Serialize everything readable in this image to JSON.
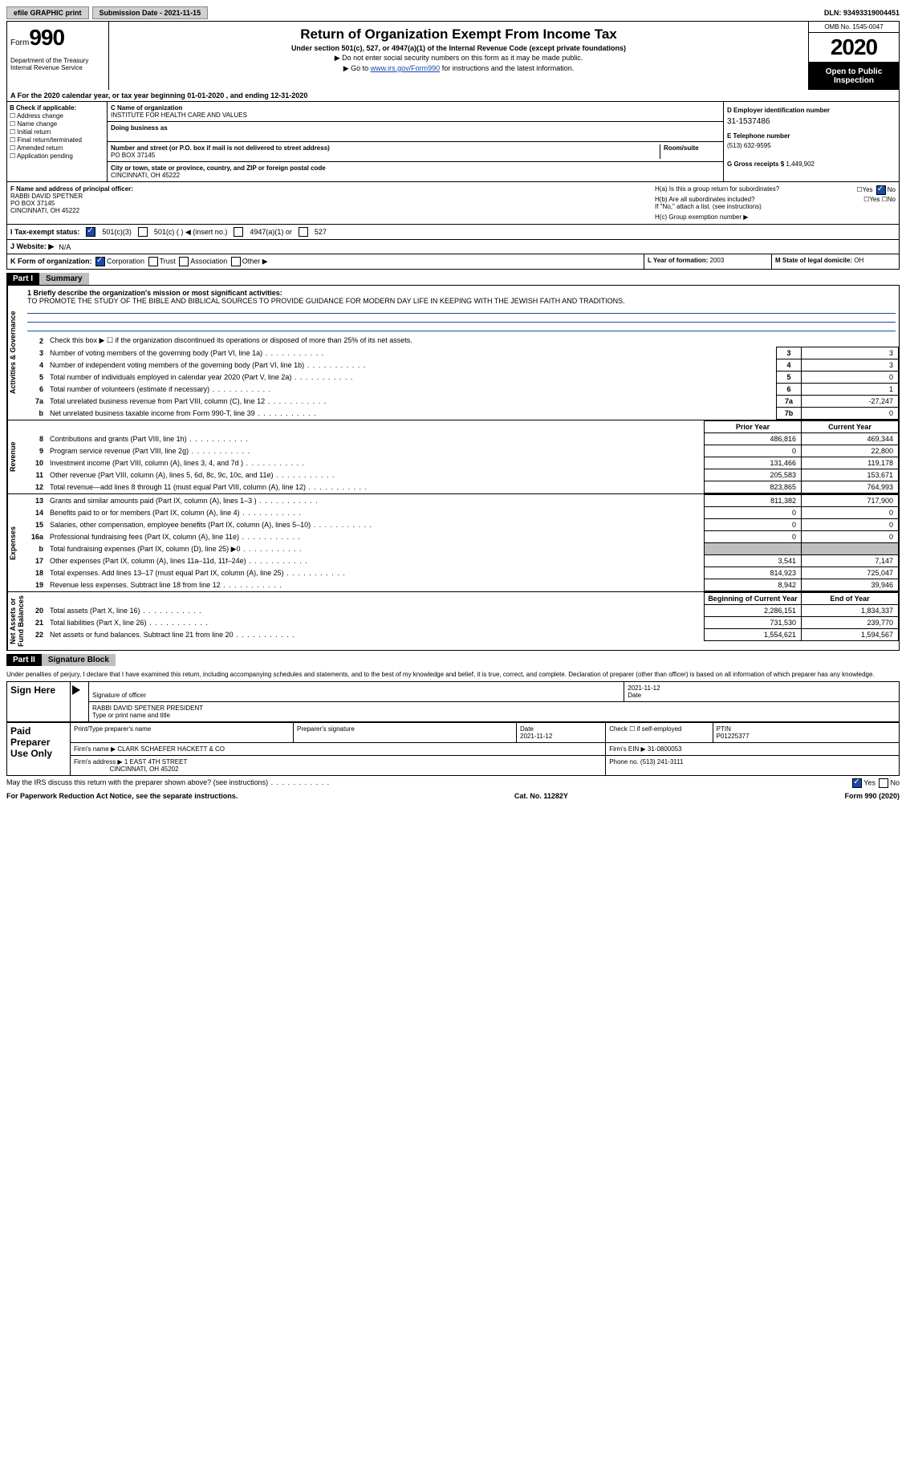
{
  "topbar": {
    "efile": "efile GRAPHIC print",
    "subdate_label": "Submission Date - ",
    "subdate": "2021-11-15",
    "dln_label": "DLN:",
    "dln": "93493319004451"
  },
  "header": {
    "form_label": "Form",
    "form_num": "990",
    "dept": "Department of the Treasury\nInternal Revenue Service",
    "title": "Return of Organization Exempt From Income Tax",
    "subtitle": "Under section 501(c), 527, or 4947(a)(1) of the Internal Revenue Code (except private foundations)",
    "note1": "▶ Do not enter social security numbers on this form as it may be made public.",
    "note2_pre": "▶ Go to ",
    "note2_link": "www.irs.gov/Form990",
    "note2_post": " for instructions and the latest information.",
    "omb": "OMB No. 1545-0047",
    "year": "2020",
    "open": "Open to Public Inspection"
  },
  "row_a": "A For the 2020 calendar year, or tax year beginning 01-01-2020   , and ending 12-31-2020",
  "section_b": {
    "prompt": "B Check if applicable:",
    "items": [
      "Address change",
      "Name change",
      "Initial return",
      "Final return/terminated",
      "Amended return",
      "Application pending"
    ]
  },
  "section_c": {
    "name_label": "C Name of organization",
    "name": "INSTITUTE FOR HEALTH CARE AND VALUES",
    "dba_label": "Doing business as",
    "addr_label": "Number and street (or P.O. box if mail is not delivered to street address)",
    "room_label": "Room/suite",
    "addr": "PO BOX 37145",
    "city_label": "City or town, state or province, country, and ZIP or foreign postal code",
    "city": "CINCINNATI, OH  45222"
  },
  "section_de": {
    "d_label": "D Employer identification number",
    "ein": "31-1537486",
    "e_label": "E Telephone number",
    "phone": "(513) 632-9595",
    "g_label": "G Gross receipts $",
    "g_val": "1,449,902"
  },
  "section_f": {
    "label": "F Name and address of principal officer:",
    "name": "RABBI DAVID SPETNER",
    "addr": "PO BOX 37145",
    "city": "CINCINNATI, OH  45222"
  },
  "section_h": {
    "ha": "H(a)  Is this a group return for subordinates?",
    "hb": "H(b)  Are all subordinates included?",
    "hb_note": "If \"No,\" attach a list. (see instructions)",
    "hc": "H(c)  Group exemption number ▶"
  },
  "status": {
    "label": "I   Tax-exempt status:",
    "opts": [
      "501(c)(3)",
      "501(c) (  ) ◀ (insert no.)",
      "4947(a)(1) or",
      "527"
    ]
  },
  "website": {
    "label": "J  Website: ▶",
    "val": "N/A"
  },
  "kform": {
    "label": "K Form of organization:",
    "opts": [
      "Corporation",
      "Trust",
      "Association",
      "Other ▶"
    ],
    "l_label": "L Year of formation:",
    "l_val": "2003",
    "m_label": "M State of legal domicile:",
    "m_val": "OH"
  },
  "part1": {
    "tag": "Part I",
    "title": "Summary"
  },
  "mission": {
    "prompt": "1  Briefly describe the organization's mission or most significant activities:",
    "text": "TO PROMOTE THE STUDY OF THE BIBLE AND BIBLICAL SOURCES TO PROVIDE GUIDANCE FOR MODERN DAY LIFE IN KEEPING WITH THE JEWISH FAITH AND TRADITIONS."
  },
  "gov_lines": [
    {
      "n": "2",
      "desc": "Check this box ▶ ☐  if the organization discontinued its operations or disposed of more than 25% of its net assets.",
      "box": "",
      "val": ""
    },
    {
      "n": "3",
      "desc": "Number of voting members of the governing body (Part VI, line 1a)",
      "box": "3",
      "val": "3"
    },
    {
      "n": "4",
      "desc": "Number of independent voting members of the governing body (Part VI, line 1b)",
      "box": "4",
      "val": "3"
    },
    {
      "n": "5",
      "desc": "Total number of individuals employed in calendar year 2020 (Part V, line 2a)",
      "box": "5",
      "val": "0"
    },
    {
      "n": "6",
      "desc": "Total number of volunteers (estimate if necessary)",
      "box": "6",
      "val": "1"
    },
    {
      "n": "7a",
      "desc": "Total unrelated business revenue from Part VIII, column (C), line 12",
      "box": "7a",
      "val": "-27,247"
    },
    {
      "n": "b",
      "desc": "Net unrelated business taxable income from Form 990-T, line 39",
      "box": "7b",
      "val": "0"
    }
  ],
  "rev_hdr": {
    "prior": "Prior Year",
    "current": "Current Year"
  },
  "revenue": [
    {
      "n": "8",
      "desc": "Contributions and grants (Part VIII, line 1h)",
      "p": "486,816",
      "c": "469,344"
    },
    {
      "n": "9",
      "desc": "Program service revenue (Part VIII, line 2g)",
      "p": "0",
      "c": "22,800"
    },
    {
      "n": "10",
      "desc": "Investment income (Part VIII, column (A), lines 3, 4, and 7d )",
      "p": "131,466",
      "c": "119,178"
    },
    {
      "n": "11",
      "desc": "Other revenue (Part VIII, column (A), lines 5, 6d, 8c, 9c, 10c, and 11e)",
      "p": "205,583",
      "c": "153,671"
    },
    {
      "n": "12",
      "desc": "Total revenue—add lines 8 through 11 (must equal Part VIII, column (A), line 12)",
      "p": "823,865",
      "c": "764,993"
    }
  ],
  "expenses": [
    {
      "n": "13",
      "desc": "Grants and similar amounts paid (Part IX, column (A), lines 1–3 )",
      "p": "811,382",
      "c": "717,900"
    },
    {
      "n": "14",
      "desc": "Benefits paid to or for members (Part IX, column (A), line 4)",
      "p": "0",
      "c": "0"
    },
    {
      "n": "15",
      "desc": "Salaries, other compensation, employee benefits (Part IX, column (A), lines 5–10)",
      "p": "0",
      "c": "0"
    },
    {
      "n": "16a",
      "desc": "Professional fundraising fees (Part IX, column (A), line 11e)",
      "p": "0",
      "c": "0"
    },
    {
      "n": "b",
      "desc": "Total fundraising expenses (Part IX, column (D), line 25) ▶0",
      "p": "",
      "c": "",
      "shade": true
    },
    {
      "n": "17",
      "desc": "Other expenses (Part IX, column (A), lines 11a–11d, 11f–24e)",
      "p": "3,541",
      "c": "7,147"
    },
    {
      "n": "18",
      "desc": "Total expenses. Add lines 13–17 (must equal Part IX, column (A), line 25)",
      "p": "814,923",
      "c": "725,047"
    },
    {
      "n": "19",
      "desc": "Revenue less expenses. Subtract line 18 from line 12",
      "p": "8,942",
      "c": "39,946"
    }
  ],
  "net_hdr": {
    "begin": "Beginning of Current Year",
    "end": "End of Year"
  },
  "netassets": [
    {
      "n": "20",
      "desc": "Total assets (Part X, line 16)",
      "p": "2,286,151",
      "c": "1,834,337"
    },
    {
      "n": "21",
      "desc": "Total liabilities (Part X, line 26)",
      "p": "731,530",
      "c": "239,770"
    },
    {
      "n": "22",
      "desc": "Net assets or fund balances. Subtract line 21 from line 20",
      "p": "1,554,621",
      "c": "1,594,567"
    }
  ],
  "vtabs": {
    "gov": "Activities & Governance",
    "rev": "Revenue",
    "exp": "Expenses",
    "net": "Net Assets or\nFund Balances"
  },
  "part2": {
    "tag": "Part II",
    "title": "Signature Block"
  },
  "sig_decl": "Under penalties of perjury, I declare that I have examined this return, including accompanying schedules and statements, and to the best of my knowledge and belief, it is true, correct, and complete. Declaration of preparer (other than officer) is based on all information of which preparer has any knowledge.",
  "sign_here": {
    "label": "Sign Here",
    "date": "2021-11-12",
    "sig_lbl": "Signature of officer",
    "date_lbl": "Date",
    "name": "RABBI DAVID SPETNER  PRESIDENT",
    "name_lbl": "Type or print name and title"
  },
  "preparer": {
    "label": "Paid Preparer Use Only",
    "name_lbl": "Print/Type preparer's name",
    "sig_lbl": "Preparer's signature",
    "date_lbl": "Date",
    "date": "2021-11-12",
    "check_lbl": "Check ☐ if self-employed",
    "ptin_lbl": "PTIN",
    "ptin": "P01225377",
    "firm_name_lbl": "Firm's name    ▶",
    "firm_name": "CLARK SCHAEFER HACKETT & CO",
    "firm_ein_lbl": "Firm's EIN ▶",
    "firm_ein": "31-0800053",
    "firm_addr_lbl": "Firm's address ▶",
    "firm_addr": "1 EAST 4TH STREET",
    "firm_city": "CINCINNATI, OH  45202",
    "phone_lbl": "Phone no.",
    "phone": "(513) 241-3111"
  },
  "discuss": "May the IRS discuss this return with the preparer shown above? (see instructions)",
  "footer": {
    "left": "For Paperwork Reduction Act Notice, see the separate instructions.",
    "mid": "Cat. No. 11282Y",
    "right": "Form 990 (2020)"
  }
}
